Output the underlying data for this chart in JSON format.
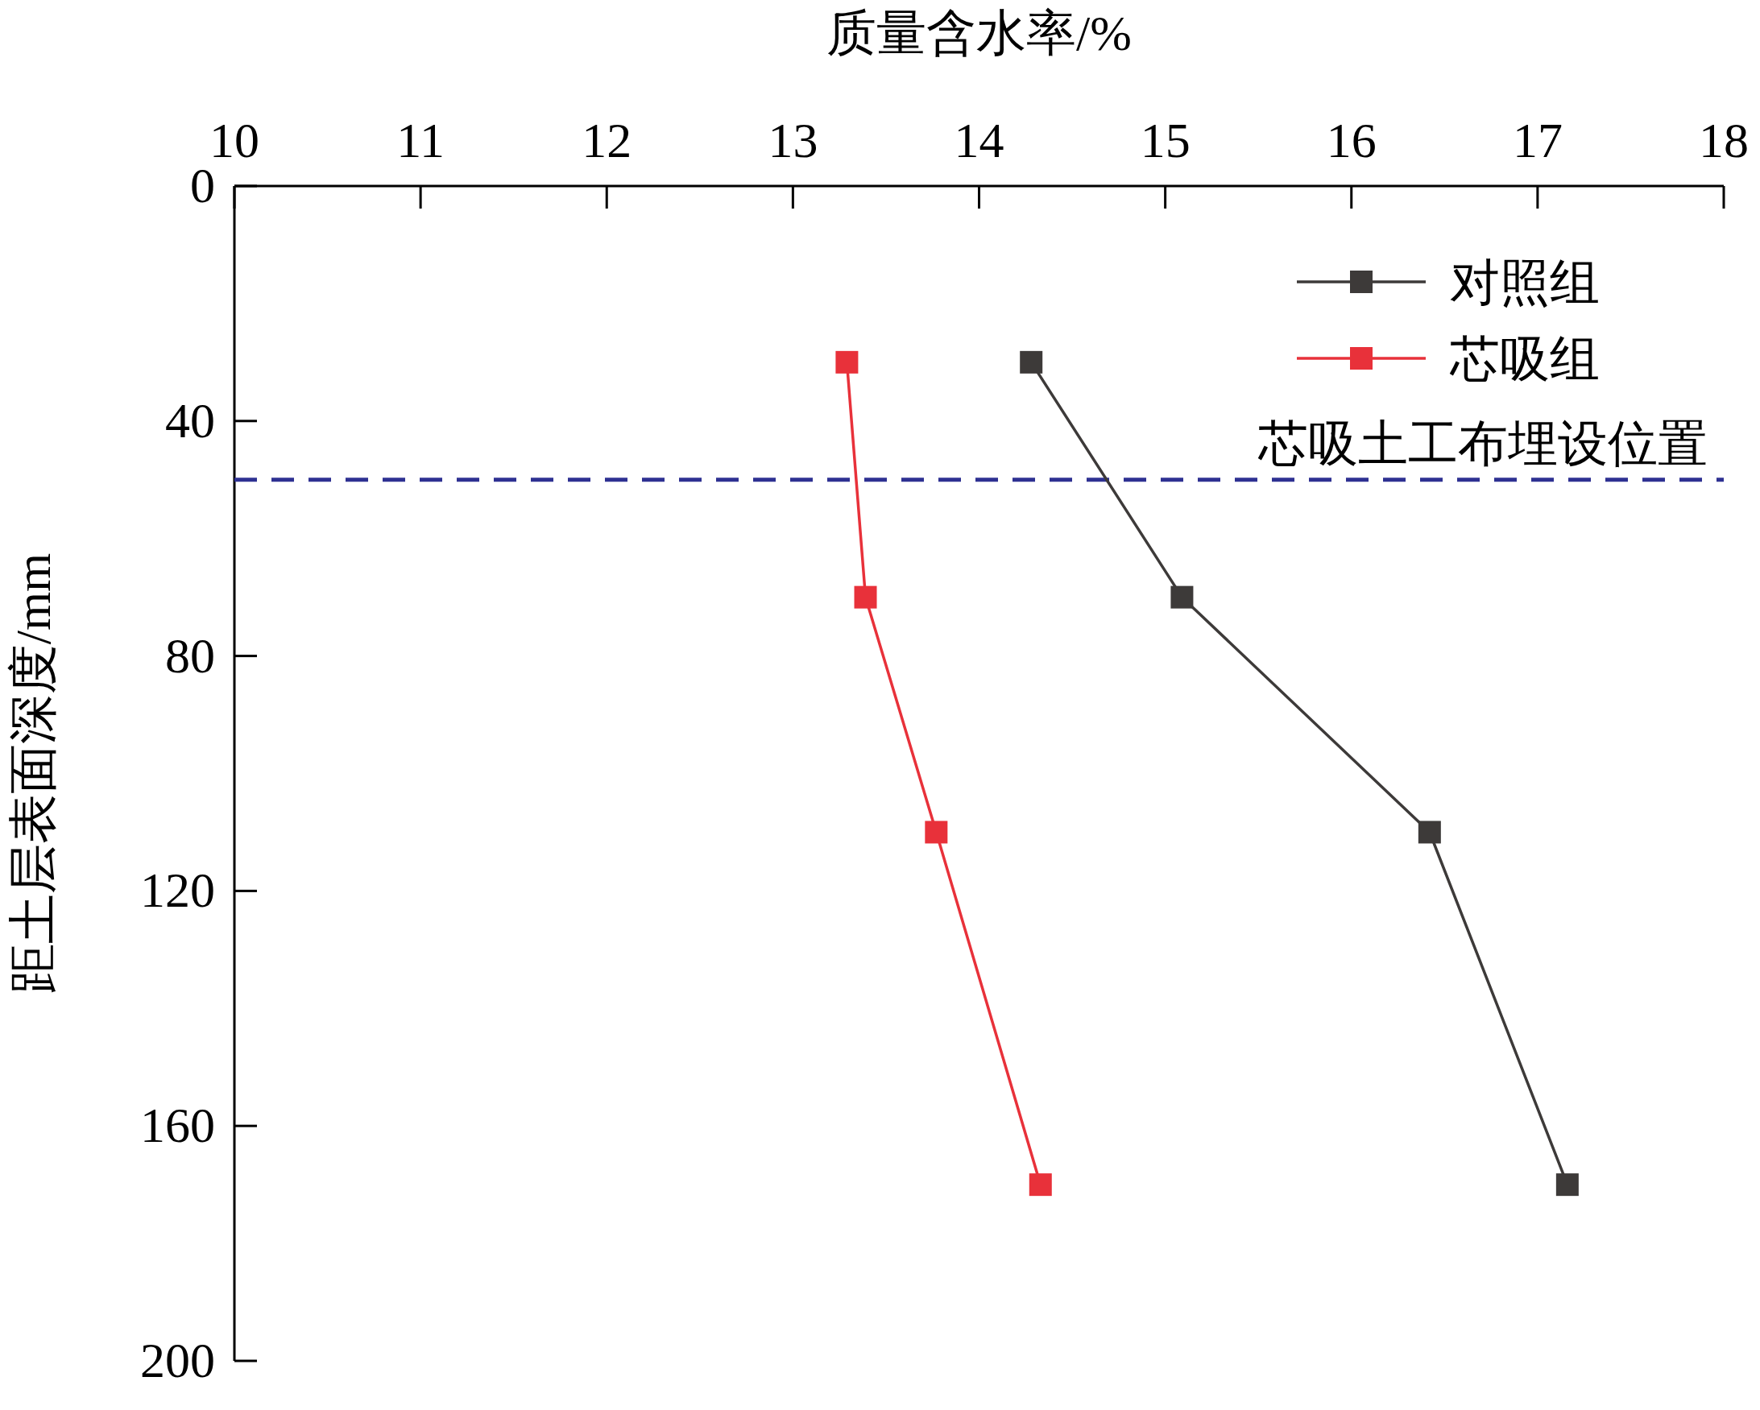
{
  "chart_data": {
    "type": "line",
    "xlabel": "质量含水率/%",
    "ylabel": "距土层表面深度/mm",
    "xlim": [
      10,
      18
    ],
    "xticks": [
      10,
      11,
      12,
      13,
      14,
      15,
      16,
      17,
      18
    ],
    "ylim": [
      200,
      0
    ],
    "yticks": [
      0,
      40,
      80,
      120,
      160,
      200
    ],
    "marker": "square",
    "line_style": "solid",
    "grid": false,
    "legend": "top right",
    "series": [
      {
        "name": "对照组",
        "color": "#3d3a39",
        "x": [
          14.28,
          15.09,
          16.42,
          17.16
        ],
        "values": [
          30,
          70,
          110,
          170
        ]
      },
      {
        "name": "芯吸组",
        "color": "#e8313a",
        "x": [
          13.29,
          13.39,
          13.77,
          14.33
        ],
        "values": [
          30,
          70,
          110,
          170
        ]
      }
    ],
    "ref_lines": [
      {
        "axis": "y",
        "value": 50,
        "label": "芯吸土工布埋设位置",
        "color": "#2e3192",
        "line_style": "dashed"
      }
    ]
  }
}
